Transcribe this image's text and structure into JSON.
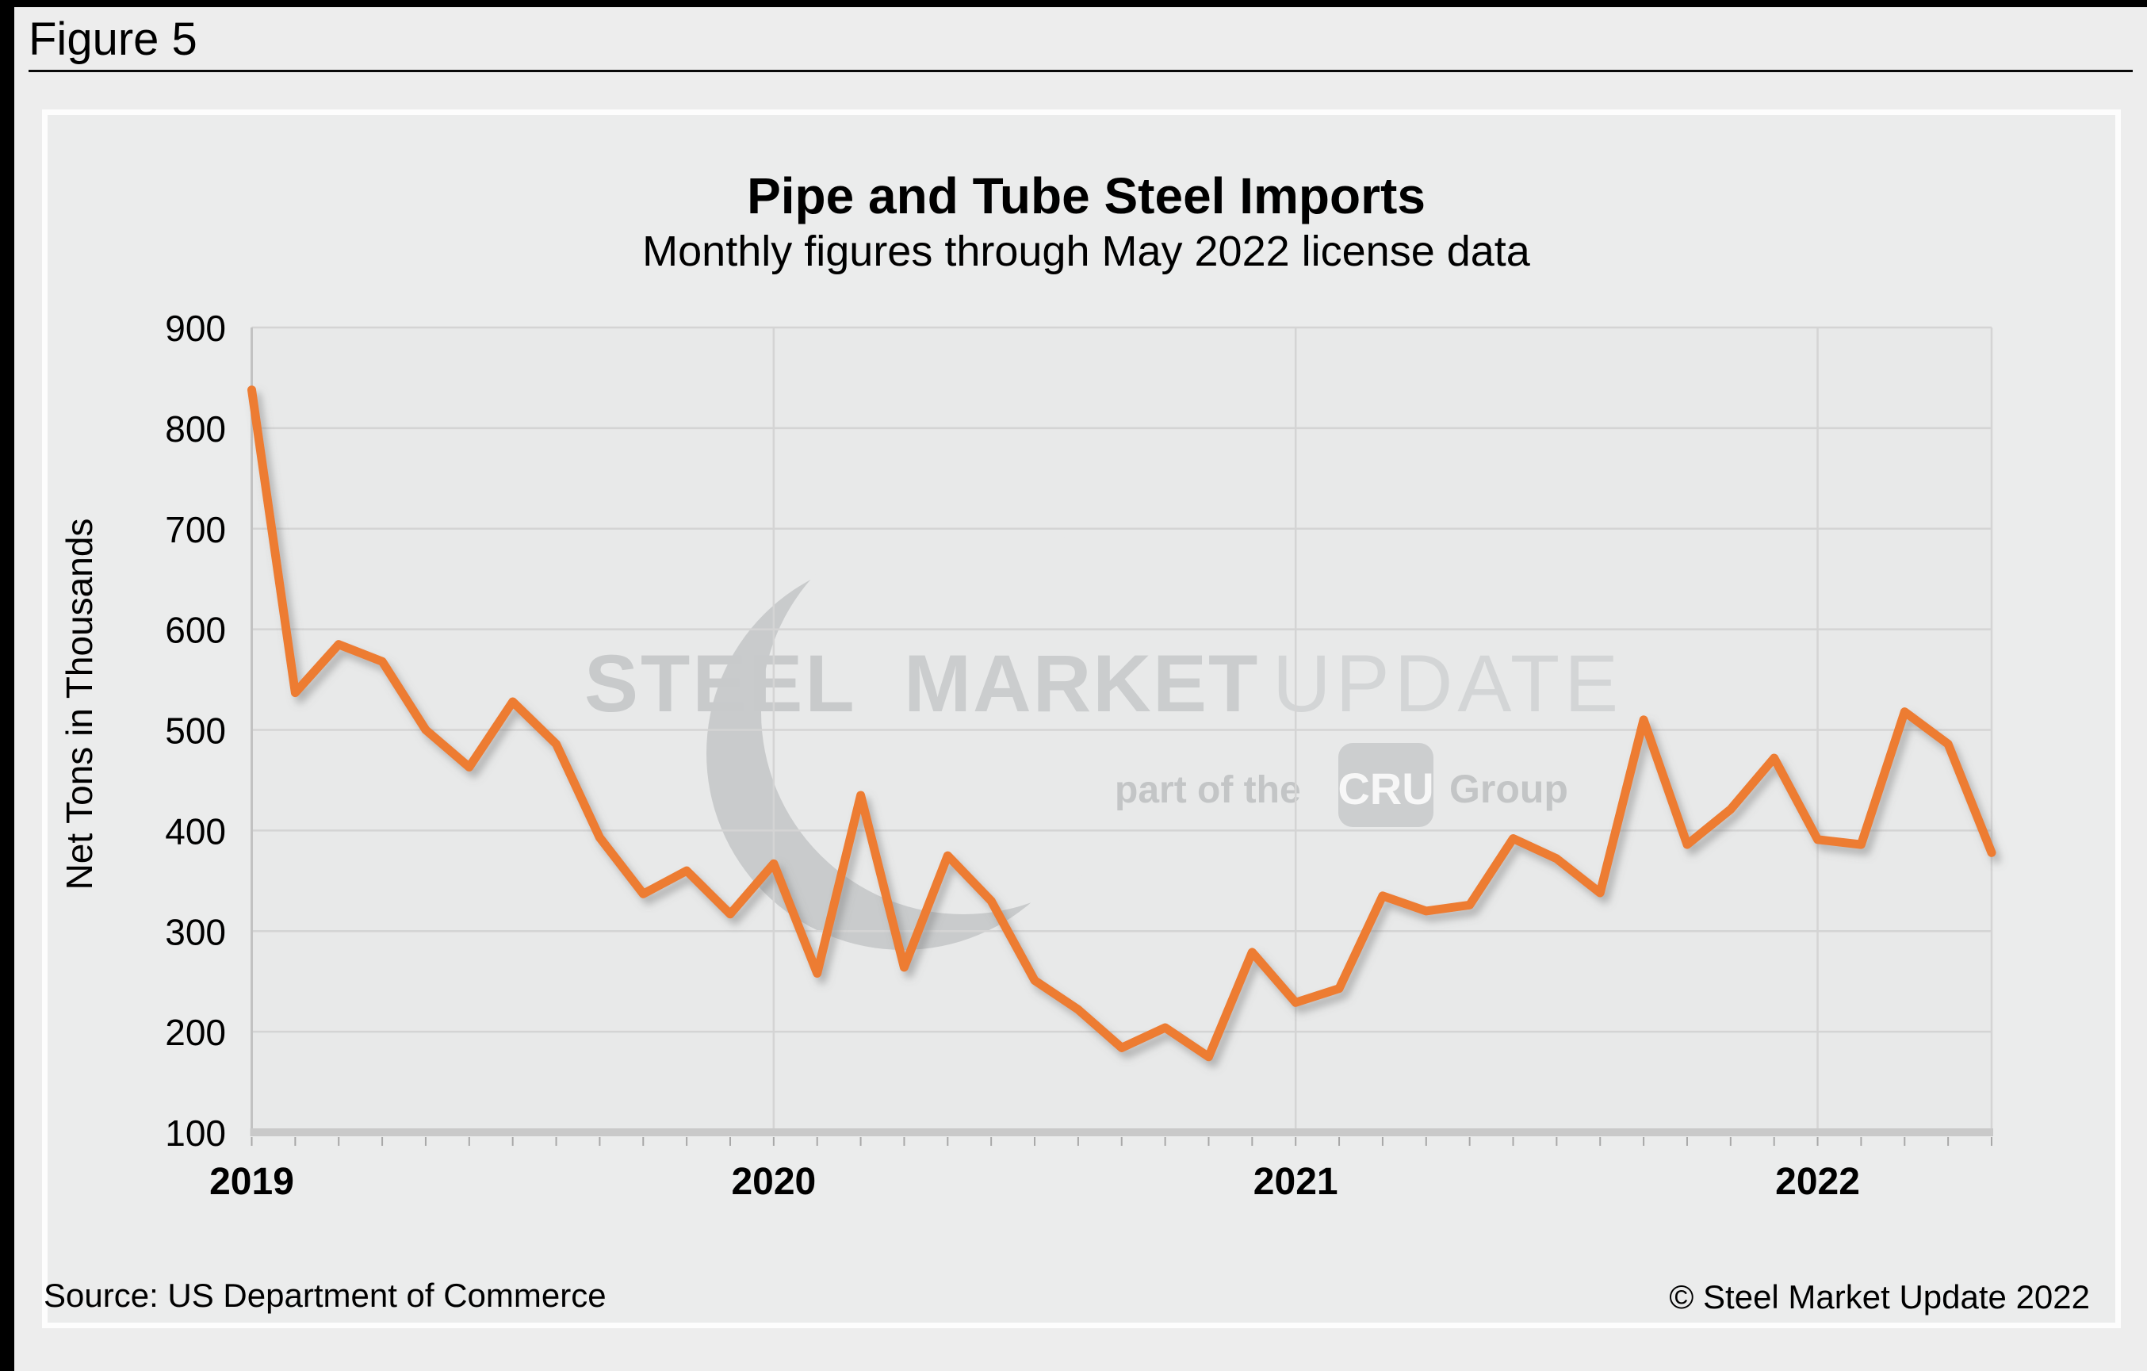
{
  "figure": {
    "label": "Figure 5"
  },
  "header": {
    "title": "Pipe and Tube Steel Imports",
    "subtitle": "Monthly figures through May 2022 license data"
  },
  "y_axis": {
    "title": "Net Tons in Thousands"
  },
  "watermark": {
    "steel": "STEEL",
    "market": "MARKET",
    "update": "UPDATE",
    "tagline_prefix": "part of the",
    "cru": "CRU",
    "group": "Group"
  },
  "footer": {
    "source": "Source: US Department of Commerce",
    "copyright": "© Steel Market Update 2022"
  },
  "colors": {
    "line": "#ED7C31",
    "plot_bg": "#e8e9e9",
    "gridline": "#d4d4d4",
    "axis_band": "#c9c9c9",
    "y_axis_line": "#c2c2c2",
    "tick": "#a8a8a8",
    "watermark_text": "#c8cacb",
    "watermark_light": "#d3d5d6",
    "watermark_box": "#cccecf"
  },
  "chart_data": {
    "type": "line",
    "title": "Pipe and Tube Steel Imports",
    "subtitle": "Monthly figures through May 2022 license data",
    "xlabel": "",
    "ylabel": "Net Tons in Thousands",
    "ylim": [
      100,
      900
    ],
    "y_ticks": [
      100,
      200,
      300,
      400,
      500,
      600,
      700,
      800,
      900
    ],
    "grid": true,
    "legend": "none",
    "year_labels": [
      "2019",
      "2020",
      "2021",
      "2022"
    ],
    "year_label_indices": [
      0,
      12,
      24,
      36
    ],
    "year_gridline_indices": [
      12,
      24,
      36
    ],
    "categories": [
      "Jan 2019",
      "Feb 2019",
      "Mar 2019",
      "Apr 2019",
      "May 2019",
      "Jun 2019",
      "Jul 2019",
      "Aug 2019",
      "Sep 2019",
      "Oct 2019",
      "Nov 2019",
      "Dec 2019",
      "Jan 2020",
      "Feb 2020",
      "Mar 2020",
      "Apr 2020",
      "May 2020",
      "Jun 2020",
      "Jul 2020",
      "Aug 2020",
      "Sep 2020",
      "Oct 2020",
      "Nov 2020",
      "Dec 2020",
      "Jan 2021",
      "Feb 2021",
      "Mar 2021",
      "Apr 2021",
      "May 2021",
      "Jun 2021",
      "Jul 2021",
      "Aug 2021",
      "Sep 2021",
      "Oct 2021",
      "Nov 2021",
      "Dec 2021",
      "Jan 2022",
      "Feb 2022",
      "Mar 2022",
      "Apr 2022",
      "May 2022"
    ],
    "values": [
      838,
      537,
      585,
      568,
      500,
      463,
      528,
      486,
      393,
      337,
      360,
      317,
      367,
      258,
      435,
      264,
      375,
      330,
      251,
      222,
      184,
      204,
      175,
      279,
      229,
      243,
      335,
      320,
      326,
      392,
      372,
      338,
      510,
      386,
      421,
      472,
      391,
      386,
      518,
      486,
      378
    ]
  }
}
